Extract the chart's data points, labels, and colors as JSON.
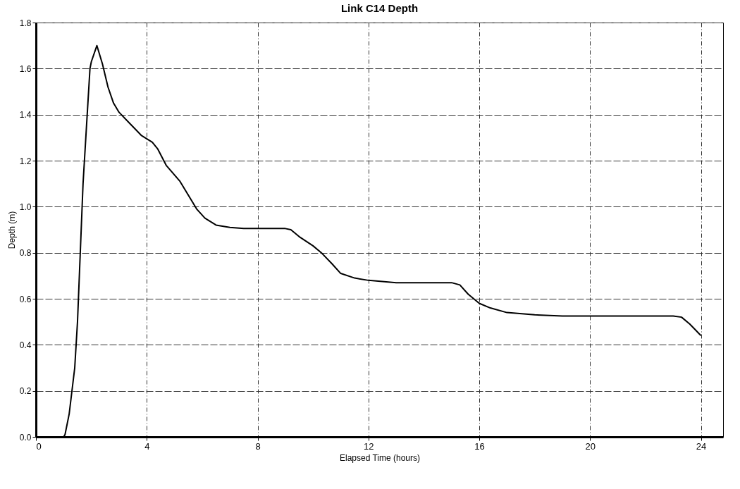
{
  "chart_data": {
    "type": "line",
    "title": "Link C14 Depth",
    "xlabel": "Elapsed Time (hours)",
    "ylabel": "Depth (m)",
    "x": [
      0,
      0.5,
      1.0,
      1.05,
      1.2,
      1.4,
      1.5,
      1.6,
      1.7,
      1.8,
      1.95,
      2.0,
      2.2,
      2.4,
      2.6,
      2.8,
      3.0,
      3.4,
      3.8,
      4.2,
      4.4,
      4.7,
      5.2,
      5.5,
      5.8,
      6.1,
      6.5,
      7,
      7.5,
      8,
      9,
      9.2,
      9.5,
      10,
      10.3,
      10.7,
      11,
      11.5,
      12,
      13,
      14,
      15,
      15.3,
      15.6,
      16,
      16.4,
      17,
      18,
      19,
      20,
      22,
      23,
      23.3,
      23.6,
      24
    ],
    "series": [
      {
        "color": "#000000",
        "values": [
          0,
          0,
          0,
          0.01,
          0.1,
          0.3,
          0.5,
          0.8,
          1.1,
          1.3,
          1.6,
          1.63,
          1.7,
          1.62,
          1.52,
          1.45,
          1.41,
          1.36,
          1.31,
          1.28,
          1.25,
          1.18,
          1.11,
          1.05,
          0.99,
          0.95,
          0.92,
          0.91,
          0.905,
          0.905,
          0.905,
          0.9,
          0.87,
          0.83,
          0.8,
          0.75,
          0.71,
          0.69,
          0.68,
          0.67,
          0.67,
          0.67,
          0.66,
          0.62,
          0.58,
          0.56,
          0.54,
          0.53,
          0.525,
          0.525,
          0.525,
          0.525,
          0.52,
          0.49,
          0.44
        ]
      }
    ],
    "xlim": [
      0,
      24.8
    ],
    "ylim": [
      0,
      1.8
    ],
    "xticks": [
      0,
      4,
      8,
      12,
      16,
      20,
      24
    ],
    "yticks": [
      {
        "value": 0,
        "label": "0.0"
      },
      0.2,
      0.4,
      0.6,
      0.8,
      {
        "value": 1,
        "label": "1.0"
      },
      1.2,
      1.4,
      1.6,
      1.8
    ],
    "grid": true,
    "line_style": "solid",
    "marker": "none"
  }
}
